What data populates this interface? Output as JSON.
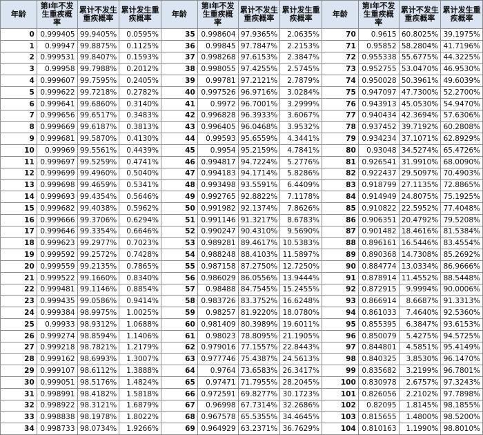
{
  "groups": [
    {
      "headers": [
        "年龄",
        "第i年不发生重疾概率",
        "累计不发生重疾概率",
        "累计发生重疾概率"
      ],
      "rows": [
        [
          "0",
          "0.999405",
          "99.9405%",
          "0.0595%"
        ],
        [
          "1",
          "0.99947",
          "99.8875%",
          "0.1125%"
        ],
        [
          "2",
          "0.999531",
          "99.8407%",
          "0.1593%"
        ],
        [
          "3",
          "0.99958",
          "99.7988%",
          "0.2012%"
        ],
        [
          "4",
          "0.999607",
          "99.7595%",
          "0.2405%"
        ],
        [
          "5",
          "0.999622",
          "99.7218%",
          "0.2782%"
        ],
        [
          "6",
          "0.999641",
          "99.6860%",
          "0.3140%"
        ],
        [
          "7",
          "0.999656",
          "99.6517%",
          "0.3483%"
        ],
        [
          "8",
          "0.999669",
          "99.6187%",
          "0.3813%"
        ],
        [
          "9",
          "0.999681",
          "99.5870%",
          "0.4130%"
        ],
        [
          "10",
          "0.99969",
          "99.5561%",
          "0.4439%"
        ],
        [
          "11",
          "0.999697",
          "99.5259%",
          "0.4741%"
        ],
        [
          "12",
          "0.999699",
          "99.4960%",
          "0.5040%"
        ],
        [
          "13",
          "0.999698",
          "99.4659%",
          "0.5341%"
        ],
        [
          "14",
          "0.999693",
          "99.4354%",
          "0.5646%"
        ],
        [
          "15",
          "0.999682",
          "99.4038%",
          "0.5962%"
        ],
        [
          "16",
          "0.999666",
          "99.3706%",
          "0.6294%"
        ],
        [
          "17",
          "0.999646",
          "99.3354%",
          "0.6646%"
        ],
        [
          "18",
          "0.999623",
          "99.2977%",
          "0.7023%"
        ],
        [
          "19",
          "0.999592",
          "99.2572%",
          "0.7428%"
        ],
        [
          "20",
          "0.999559",
          "99.2135%",
          "0.7865%"
        ],
        [
          "21",
          "0.999522",
          "99.1660%",
          "0.8340%"
        ],
        [
          "22",
          "0.999481",
          "99.1146%",
          "0.8854%"
        ],
        [
          "23",
          "0.999435",
          "99.0586%",
          "0.9414%"
        ],
        [
          "24",
          "0.999384",
          "98.9975%",
          "1.0025%"
        ],
        [
          "25",
          "0.99933",
          "98.9312%",
          "1.0688%"
        ],
        [
          "26",
          "0.999274",
          "98.8594%",
          "1.1406%"
        ],
        [
          "27",
          "0.999218",
          "98.7821%",
          "1.2179%"
        ],
        [
          "28",
          "0.999162",
          "98.6993%",
          "1.3007%"
        ],
        [
          "29",
          "0.999107",
          "98.6112%",
          "1.3888%"
        ],
        [
          "30",
          "0.999051",
          "98.5176%",
          "1.4824%"
        ],
        [
          "31",
          "0.998991",
          "98.4182%",
          "1.5818%"
        ],
        [
          "32",
          "0.998922",
          "98.3121%",
          "1.6879%"
        ],
        [
          "33",
          "0.998838",
          "98.1978%",
          "1.8022%"
        ],
        [
          "34",
          "0.998733",
          "98.0734%",
          "1.9266%"
        ]
      ]
    },
    {
      "headers": [
        "年龄",
        "第i年不发生重疾概率",
        "累计不发生重疾概率",
        "累计发生重疾概率"
      ],
      "rows": [
        [
          "35",
          "0.998604",
          "97.9365%",
          "2.0635%"
        ],
        [
          "36",
          "0.99845",
          "97.7847%",
          "2.2153%"
        ],
        [
          "37",
          "0.998268",
          "97.6153%",
          "2.3847%"
        ],
        [
          "38",
          "0.998055",
          "97.4255%",
          "2.5745%"
        ],
        [
          "39",
          "0.99781",
          "97.2121%",
          "2.7879%"
        ],
        [
          "40",
          "0.997526",
          "96.9716%",
          "3.0284%"
        ],
        [
          "41",
          "0.9972",
          "96.7001%",
          "3.2999%"
        ],
        [
          "42",
          "0.996828",
          "96.3933%",
          "3.6067%"
        ],
        [
          "43",
          "0.996405",
          "96.0468%",
          "3.9532%"
        ],
        [
          "44",
          "0.99593",
          "95.6559%",
          "4.3441%"
        ],
        [
          "45",
          "0.9954",
          "95.2159%",
          "4.7841%"
        ],
        [
          "46",
          "0.994817",
          "94.7224%",
          "5.2776%"
        ],
        [
          "47",
          "0.994183",
          "94.1714%",
          "5.8286%"
        ],
        [
          "48",
          "0.993498",
          "93.5591%",
          "6.4409%"
        ],
        [
          "49",
          "0.992765",
          "92.8822%",
          "7.1178%"
        ],
        [
          "50",
          "0.991982",
          "92.1374%",
          "7.8626%"
        ],
        [
          "51",
          "0.991146",
          "91.3217%",
          "8.6783%"
        ],
        [
          "52",
          "0.990247",
          "90.4310%",
          "9.5690%"
        ],
        [
          "53",
          "0.989281",
          "89.4617%",
          "10.5383%"
        ],
        [
          "54",
          "0.988248",
          "88.4103%",
          "11.5897%"
        ],
        [
          "55",
          "0.987158",
          "87.2750%",
          "12.7250%"
        ],
        [
          "56",
          "0.986029",
          "86.0556%",
          "13.9444%"
        ],
        [
          "57",
          "0.98488",
          "84.7545%",
          "15.2455%"
        ],
        [
          "58",
          "0.983726",
          "83.3752%",
          "16.6248%"
        ],
        [
          "59",
          "0.98257",
          "81.9220%",
          "18.0780%"
        ],
        [
          "60",
          "0.981409",
          "80.3989%",
          "19.6011%"
        ],
        [
          "61",
          "0.98023",
          "78.8095%",
          "21.1905%"
        ],
        [
          "62",
          "0.979016",
          "77.1557%",
          "22.8443%"
        ],
        [
          "63",
          "0.977746",
          "75.4387%",
          "24.5613%"
        ],
        [
          "64",
          "0.9764",
          "73.6583%",
          "26.3417%"
        ],
        [
          "65",
          "0.97471",
          "71.7955%",
          "28.2045%"
        ],
        [
          "66",
          "0.972591",
          "69.8277%",
          "30.1723%"
        ],
        [
          "67",
          "0.96998",
          "67.7314%",
          "32.2686%"
        ],
        [
          "68",
          "0.967578",
          "65.5355%",
          "34.4645%"
        ],
        [
          "69",
          "0.964929",
          "63.2371%",
          "36.7629%"
        ]
      ]
    },
    {
      "headers": [
        "年龄",
        "第i年不发生重疾概率",
        "累计不发生重疾概率",
        "累计发生重疾概率"
      ],
      "rows": [
        [
          "70",
          "0.9615",
          "60.8025%",
          "39.1975%"
        ],
        [
          "71",
          "0.95852",
          "58.2804%",
          "41.7196%"
        ],
        [
          "72",
          "0.955338",
          "55.6775%",
          "44.3225%"
        ],
        [
          "73",
          "0.952755",
          "53.0470%",
          "46.9530%"
        ],
        [
          "74",
          "0.950028",
          "50.3961%",
          "49.6039%"
        ],
        [
          "75",
          "0.947097",
          "47.7300%",
          "52.2700%"
        ],
        [
          "76",
          "0.943913",
          "45.0530%",
          "54.9470%"
        ],
        [
          "77",
          "0.940434",
          "42.3694%",
          "57.6306%"
        ],
        [
          "78",
          "0.937452",
          "39.7192%",
          "60.2808%"
        ],
        [
          "79",
          "0.934234",
          "37.1071%",
          "62.8929%"
        ],
        [
          "80",
          "0.93048",
          "34.5274%",
          "65.4726%"
        ],
        [
          "81",
          "0.926541",
          "31.9910%",
          "68.0090%"
        ],
        [
          "82",
          "0.922437",
          "29.5097%",
          "70.4903%"
        ],
        [
          "83",
          "0.918799",
          "27.1135%",
          "72.8865%"
        ],
        [
          "84",
          "0.914949",
          "24.8075%",
          "75.1925%"
        ],
        [
          "85",
          "0.910822",
          "22.5952%",
          "77.4048%"
        ],
        [
          "86",
          "0.906351",
          "20.4792%",
          "79.5208%"
        ],
        [
          "87",
          "0.901482",
          "18.4616%",
          "81.5384%"
        ],
        [
          "88",
          "0.896161",
          "16.5446%",
          "83.4554%"
        ],
        [
          "89",
          "0.890368",
          "14.7308%",
          "85.2692%"
        ],
        [
          "90",
          "0.884774",
          "13.0334%",
          "86.9666%"
        ],
        [
          "91",
          "0.878914",
          "11.4552%",
          "88.5448%"
        ],
        [
          "92",
          "0.872915",
          "9.9994%",
          "90.0006%"
        ],
        [
          "93",
          "0.866914",
          "8.6687%",
          "91.3313%"
        ],
        [
          "94",
          "0.861033",
          "7.4640%",
          "92.5360%"
        ],
        [
          "95",
          "0.855395",
          "6.3847%",
          "93.6153%"
        ],
        [
          "96",
          "0.850079",
          "5.4275%",
          "94.5725%"
        ],
        [
          "97",
          "0.844801",
          "4.5851%",
          "95.4149%"
        ],
        [
          "98",
          "0.840325",
          "3.8530%",
          "96.1470%"
        ],
        [
          "99",
          "0.835682",
          "3.2199%",
          "96.7801%"
        ],
        [
          "100",
          "0.830978",
          "2.6757%",
          "97.3243%"
        ],
        [
          "101",
          "0.826056",
          "2.2102%",
          "97.7898%"
        ],
        [
          "102",
          "0.82095",
          "1.8145%",
          "98.1855%"
        ],
        [
          "103",
          "0.815655",
          "1.4800%",
          "98.5200%"
        ],
        [
          "104",
          "0.810163",
          "1.1990%",
          "98.8010%"
        ]
      ]
    }
  ]
}
